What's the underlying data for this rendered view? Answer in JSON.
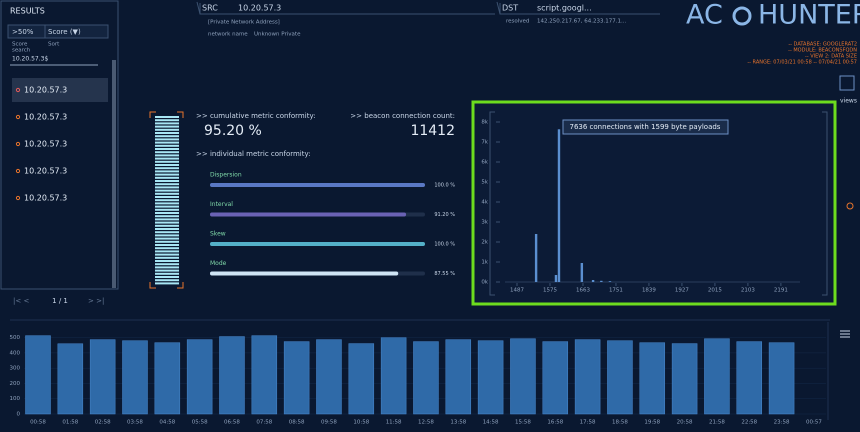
{
  "results": {
    "title": "RESULTS",
    "filter": ">50%",
    "sort": "Score (▼)",
    "filter_label": "Score",
    "sort_label": "Sort",
    "search_label": "search",
    "search_value": "10.20.57.3$",
    "items": [
      "10.20.57.3",
      "10.20.57.3",
      "10.20.57.3",
      "10.20.57.3",
      "10.20.57.3"
    ],
    "page": "1 / 1"
  },
  "src": {
    "label": "SRC",
    "ip": "10.20.57.3",
    "address_type": "[Private Network Address]",
    "network_label": "network name",
    "network_name": "Unknown Private"
  },
  "dst": {
    "label": "DST",
    "host": "script.googl...",
    "resolved_label": "resolved",
    "resolved": "142.250.217.67, 64.233.177.1..."
  },
  "logo": {
    "left": "AC",
    "right": "HUNTER"
  },
  "info": [
    "-- DATABASE: GOOGLERAT2",
    "-- MODULE: BEACONSFQDN",
    "-- VIEW 2: DATA SIZE",
    "-- RANGE: 07/03/21 00:58 -- 07/04/21 00:57"
  ],
  "views": "views",
  "metrics": {
    "cumulative_label": ">> cumulative metric conformity:",
    "cumulative": "95.20 %",
    "count_label": ">> beacon connection count:",
    "count": "11412",
    "individual_label": ">> individual metric conformity:",
    "items": [
      {
        "name": "Dispersion",
        "value": 100,
        "label": "100.0 %",
        "color": "#5a78c4"
      },
      {
        "name": "Interval",
        "value": 91.2,
        "label": "91.20 %",
        "color": "#6a62b4"
      },
      {
        "name": "Skew",
        "value": 100,
        "label": "100.0 %",
        "color": "#54b0c8"
      },
      {
        "name": "Mode",
        "value": 87.55,
        "label": "87.55 %",
        "color": "#cfe4f4"
      }
    ]
  },
  "chart_data": [
    {
      "type": "histogram",
      "annotation": "7636 connections with 1599 byte payloads",
      "x": [
        1538,
        1591,
        1599,
        1660,
        1690,
        1712,
        1735
      ],
      "values": [
        2400,
        350,
        7636,
        950,
        100,
        60,
        40
      ],
      "color": "#5b8fd0",
      "xlim": [
        1455,
        2242
      ],
      "xticks": [
        1487,
        1575,
        1663,
        1751,
        1839,
        1927,
        2015,
        2103,
        2191
      ],
      "ylim": [
        0,
        8000
      ],
      "yticks": [
        {
          "value": 0,
          "label": "0k"
        },
        {
          "value": 1000,
          "label": "1k"
        },
        {
          "value": 2000,
          "label": "2k"
        },
        {
          "value": 3000,
          "label": "3k"
        },
        {
          "value": 4000,
          "label": "4k"
        },
        {
          "value": 5000,
          "label": "5k"
        },
        {
          "value": 6000,
          "label": "6k"
        },
        {
          "value": 7000,
          "label": "7k"
        },
        {
          "value": 8000,
          "label": "8k"
        }
      ]
    },
    {
      "type": "bar",
      "categories": [
        "00:58",
        "01:58",
        "02:58",
        "03:58",
        "04:58",
        "05:58",
        "06:58",
        "07:58",
        "08:58",
        "09:58",
        "10:58",
        "11:58",
        "12:58",
        "13:58",
        "14:58",
        "15:58",
        "16:58",
        "17:58",
        "18:58",
        "19:58",
        "20:58",
        "21:58",
        "22:58",
        "23:58",
        "00:57"
      ],
      "values": [
        513,
        460,
        487,
        480,
        467,
        487,
        507,
        513,
        474,
        487,
        461,
        500,
        474,
        487,
        480,
        493,
        474,
        487,
        480,
        467,
        461,
        493,
        474,
        467,
        null
      ],
      "color": "#2f6aa8",
      "ylim": [
        0,
        550
      ],
      "yticks": [
        0,
        100,
        200,
        300,
        400,
        500
      ]
    }
  ]
}
